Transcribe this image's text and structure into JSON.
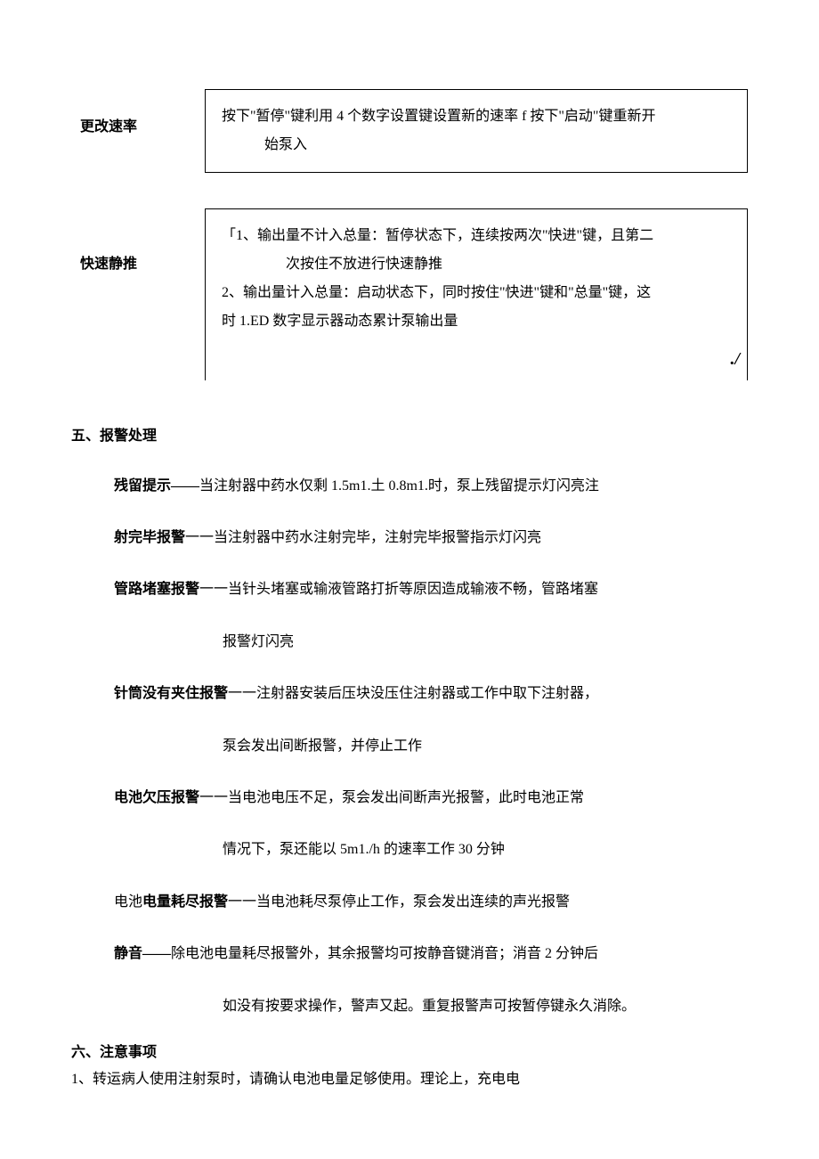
{
  "rows": {
    "changeRate": {
      "label": "更改速率",
      "text": "按下\"暂停\"键利用 4 个数字设置键设置新的速率 f 按下\"启动\"键重新开",
      "indent": "始泵入"
    },
    "fastPush": {
      "label": "快速静推",
      "line1": "「1、输出量不计入总量：暂停状态下，连续按两次\"快进\"键，且第二",
      "line1cont": "次按住不放进行快速静推",
      "line2a": " 2、输出量计入总量：启动状态下，同时按住\"快进\"键和\"总量\"键，这",
      "line2b": "时 1.ED 数字显示器动态累计泵输出量",
      "corner": "./"
    }
  },
  "section5": {
    "title": "五、报警处理",
    "items": [
      {
        "bold": "残留提示——",
        "rest": "当注射器中药水仅剩 1.5m1.土 0.8m1.时，泵上残留提示灯闪亮注",
        "cont": ""
      },
      {
        "bold": "射完毕报警",
        "rest": "一一当注射器中药水注射完毕，注射完毕报警指示灯闪亮",
        "cont": ""
      },
      {
        "bold": "管路堵塞报警",
        "rest": "一一当针头堵塞或输液管路打折等原因造成输液不畅，管路堵塞",
        "cont": "报警灯闪亮"
      },
      {
        "bold": "针筒没有夹住报警",
        "rest": "一一注射器安装后压块没压住注射器或工作中取下注射器，",
        "cont": "泵会发出间断报警，并停止工作"
      },
      {
        "bold": "电池欠压报警",
        "rest": "一一当电池电压不足，泵会发出间断声光报警，此时电池正常",
        "cont": "情况下，泵还能以 5m1./h 的速率工作 30 分钟"
      },
      {
        "prefix": "电池",
        "bold": "电量耗尽报警",
        "rest": "一一当电池耗尽泵停止工作，泵会发出连续的声光报警",
        "cont": ""
      },
      {
        "bold": "静音——",
        "rest": "除电池电量耗尽报警外，其余报警均可按静音键消音；消音 2 分钟后",
        "cont": "如没有按要求操作，警声又起。重复报警声可按暂停键永久消除。"
      }
    ]
  },
  "section6": {
    "title": "六、注意事项",
    "item1": "1、转运病人使用注射泵时，请确认电池电量足够使用。理论上，充电电"
  }
}
